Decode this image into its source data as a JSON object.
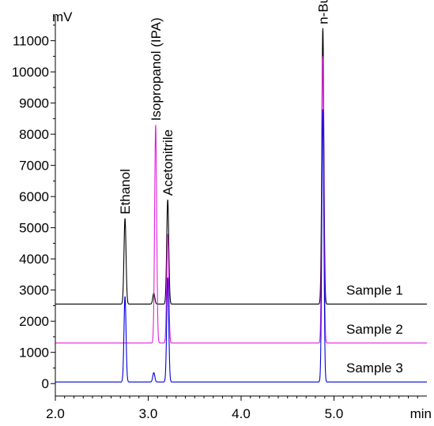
{
  "chart_data": {
    "type": "line",
    "title": "",
    "xlabel": "min",
    "ylabel": "mV",
    "xlim": [
      2.0,
      6.0
    ],
    "ylim": [
      -400,
      11800
    ],
    "x_ticks": [
      {
        "value": 2.0,
        "label": "2.0"
      },
      {
        "value": 3.0,
        "label": "3.0"
      },
      {
        "value": 4.0,
        "label": "4.0"
      },
      {
        "value": 5.0,
        "label": "5.0"
      }
    ],
    "y_ticks": [
      {
        "value": 0,
        "label": "0"
      },
      {
        "value": 1000,
        "label": "1000"
      },
      {
        "value": 2000,
        "label": "2000"
      },
      {
        "value": 3000,
        "label": "3000"
      },
      {
        "value": 4000,
        "label": "4000"
      },
      {
        "value": 5000,
        "label": "5000"
      },
      {
        "value": 6000,
        "label": "6000"
      },
      {
        "value": 7000,
        "label": "7000"
      },
      {
        "value": 8000,
        "label": "8000"
      },
      {
        "value": 9000,
        "label": "9000"
      },
      {
        "value": 10000,
        "label": "10000"
      },
      {
        "value": 11000,
        "label": "11000"
      }
    ],
    "grid": false,
    "peaks": [
      {
        "label": "Ethanol",
        "x": 2.75,
        "y": 5300
      },
      {
        "label": "Isopropanol (IPA)",
        "x": 3.08,
        "y": 8300
      },
      {
        "label": "Acetonitrile",
        "x": 3.21,
        "y": 5900
      },
      {
        "label": "n-Butanol",
        "x": 4.88,
        "y": 11400
      }
    ],
    "series": [
      {
        "name": "Sample 1",
        "color": "#000000",
        "baseline": 2550,
        "peaks": [
          {
            "x": 2.75,
            "y": 5300
          },
          {
            "x": 3.06,
            "y": 2900
          },
          {
            "x": 3.21,
            "y": 5900
          },
          {
            "x": 4.88,
            "y": 11400
          }
        ]
      },
      {
        "name": "Sample 2",
        "color": "#e020e0",
        "baseline": 1300,
        "peaks": [
          {
            "x": 3.08,
            "y": 8300
          },
          {
            "x": 3.21,
            "y": 4800
          },
          {
            "x": 4.88,
            "y": 10500
          }
        ]
      },
      {
        "name": "Sample 3",
        "color": "#0000e0",
        "baseline": 50,
        "peaks": [
          {
            "x": 2.75,
            "y": 2800
          },
          {
            "x": 3.06,
            "y": 350
          },
          {
            "x": 3.21,
            "y": 3400
          },
          {
            "x": 4.88,
            "y": 8800
          }
        ]
      }
    ]
  }
}
